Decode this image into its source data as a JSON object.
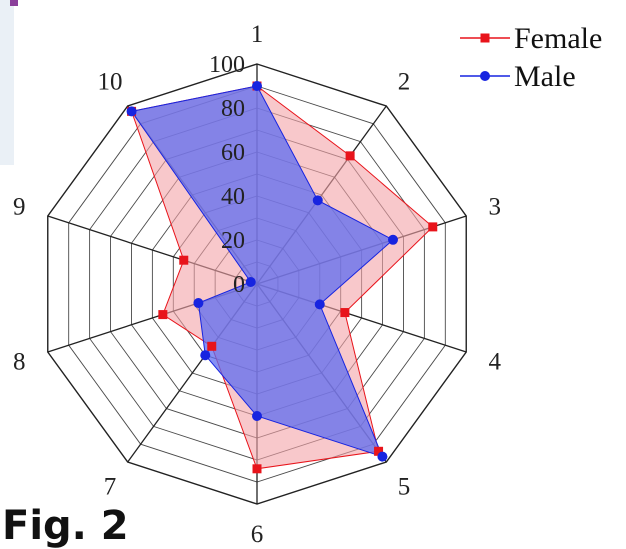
{
  "chart_data": {
    "type": "radar",
    "categories": [
      "1",
      "2",
      "3",
      "4",
      "5",
      "6",
      "7",
      "8",
      "9",
      "10"
    ],
    "radial_ticks": [
      "0",
      "20",
      "40",
      "60",
      "80",
      "100"
    ],
    "rlim": [
      0,
      100
    ],
    "grid": true,
    "legend": "top-right",
    "series": [
      {
        "name": "Female",
        "color": "#e8141b",
        "fill": "#f4a3a8",
        "marker": "square",
        "values": [
          90,
          72,
          84,
          42,
          94,
          84,
          35,
          45,
          35,
          97
        ]
      },
      {
        "name": "Male",
        "color": "#1724e0",
        "fill": "#5d6cf0",
        "marker": "circle",
        "values": [
          90,
          47,
          65,
          30,
          97,
          60,
          40,
          28,
          3,
          97
        ]
      }
    ]
  },
  "caption": "Fig. 2"
}
